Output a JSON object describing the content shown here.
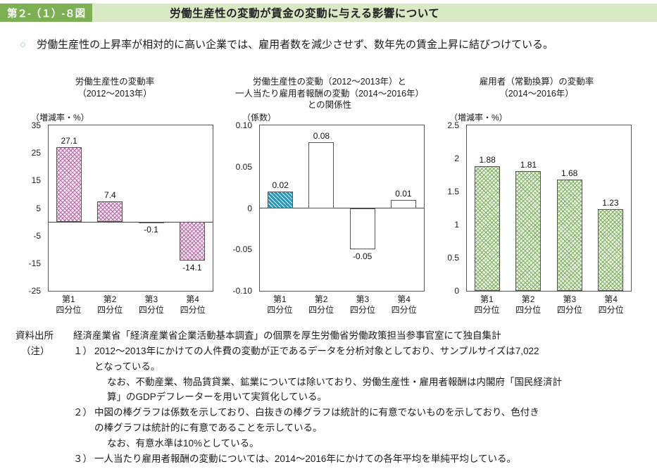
{
  "header": {
    "figure_number": "第２-（１）-８図",
    "title": "労働生産性の変動が賃金の変動に与える影響について"
  },
  "lead": {
    "bullet": "○",
    "text": "　労働生産性の上昇率が相対的に高い企業では、雇用者数を減少させず、数年先の賃金上昇に結びつけている。"
  },
  "colors": {
    "header_badge_green": "#7cb052",
    "header_strip_green": "#d9e8c5",
    "bar_pink_hatch": "#bb6aa6",
    "bar_teal": "#2397bd",
    "bar_green_hatch": "#7fb060",
    "bullet_blue": "#79c6e8"
  },
  "chart_data": [
    {
      "type": "bar",
      "title": "労働生産性の変動率\n（2012〜2013年）",
      "unit_label": "（増減率・%）",
      "categories": [
        "第1\n四分位",
        "第2\n四分位",
        "第3\n四分位",
        "第4\n四分位"
      ],
      "values": [
        27.1,
        7.4,
        -0.1,
        -14.1
      ],
      "labels": [
        "27.1",
        "7.4",
        "-0.1",
        "-14.1"
      ],
      "ylim": [
        -25,
        35
      ],
      "yticks": [
        "35",
        "25",
        "15",
        "5",
        "-5",
        "-15",
        "-25"
      ],
      "bar_styles": [
        "pink",
        "pink",
        "pink",
        "pink"
      ],
      "grid": false,
      "legend": false
    },
    {
      "type": "bar",
      "title": "労働生産性の変動（2012〜2013年）と\n一人当たり雇用者報酬の変動（2014〜2016年）\nとの関係性",
      "unit_label": "（係数）",
      "categories": [
        "第1\n四分位",
        "第2\n四分位",
        "第3\n四分位",
        "第4\n四分位"
      ],
      "values": [
        0.02,
        0.08,
        -0.05,
        0.01
      ],
      "labels": [
        "0.02",
        "0.08",
        "-0.05",
        "0.01"
      ],
      "ylim": [
        -0.1,
        0.1
      ],
      "yticks": [
        "0.10",
        "0.05",
        "0",
        "-0.05",
        "-0.10"
      ],
      "bar_styles": [
        "teal",
        "white",
        "white",
        "white"
      ],
      "grid": false,
      "legend": false
    },
    {
      "type": "bar",
      "title": "雇用者（常勤換算）の変動率\n（2014〜2016年）",
      "unit_label": "（増減率・%）",
      "categories": [
        "第1\n四分位",
        "第2\n四分位",
        "第3\n四分位",
        "第4\n四分位"
      ],
      "values": [
        1.88,
        1.81,
        1.68,
        1.23
      ],
      "labels": [
        "1.88",
        "1.81",
        "1.68",
        "1.23"
      ],
      "ylim": [
        0,
        2.5
      ],
      "yticks": [
        "2.5",
        "2",
        "1.5",
        "1",
        "0.5",
        "0"
      ],
      "bar_styles": [
        "green",
        "green",
        "green",
        "green"
      ],
      "grid": false,
      "legend": false
    }
  ],
  "notes": {
    "source_label": "資料出所",
    "source_text": "経済産業省「経済産業省企業活動基本調査」の個票を厚生労働省労働政策担当参事官室にて独自集計",
    "note_label": "（注）",
    "items": [
      {
        "num": "１）",
        "text": "2012〜2013年にかけての人件費の変動が正であるデータを分析対象としており、サンプルサイズは7,022\nとなっている。"
      },
      {
        "num": "",
        "text": "なお、不動産業、物品賃貸業、鉱業については除いており、労働生産性・雇用者報酬は内閣府「国民経済計\n算」のGDPデフレーターを用いて実質化している。"
      },
      {
        "num": "２）",
        "text": "中図の棒グラフは係数を示しており、白抜きの棒グラフは統計的に有意でないものを示しており、色付き\nの棒グラフは統計的に有意であることを示している。"
      },
      {
        "num": "",
        "text": "なお、有意水準は10%としている。"
      },
      {
        "num": "３）",
        "text": "一人当たり雇用者報酬の変動については、2014〜2016年にかけての各年平均を単純平均している。"
      }
    ]
  }
}
